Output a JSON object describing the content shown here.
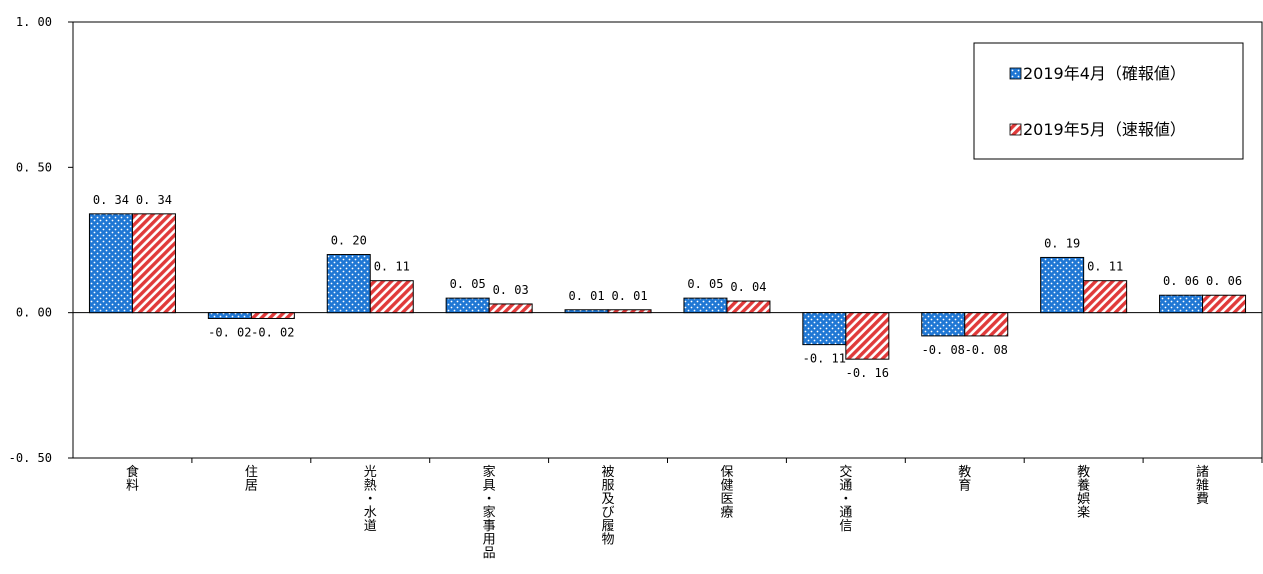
{
  "chart_data": {
    "type": "bar",
    "title": "",
    "xlabel": "",
    "ylabel": "",
    "ylim": [
      -0.5,
      1.0
    ],
    "yticks": [
      "1. 00",
      "0. 50",
      "0. 00",
      "-0. 50"
    ],
    "ytick_values": [
      1.0,
      0.5,
      0.0,
      -0.5
    ],
    "grid": false,
    "legend_position": "top-right",
    "categories": [
      "食料",
      "住居",
      "光熱・水道",
      "家具・家事用品",
      "被服及び履物",
      "保健医療",
      "交通・通信",
      "教育",
      "教養娯楽",
      "諸雑費"
    ],
    "series": [
      {
        "name": "2019年4月（確報値）",
        "color": "#1f77d4",
        "pattern": "dots",
        "values": [
          0.34,
          -0.02,
          0.2,
          0.05,
          0.01,
          0.05,
          -0.11,
          -0.08,
          0.19,
          0.06
        ],
        "labels": [
          "0. 34",
          "-0. 02",
          "0. 20",
          "0. 05",
          "0. 01",
          "0. 05",
          "-0. 11",
          "-0. 08",
          "0. 19",
          "0. 06"
        ]
      },
      {
        "name": "2019年5月（速報値）",
        "color": "#e03a3a",
        "pattern": "diagonal-stripes",
        "values": [
          0.34,
          -0.02,
          0.11,
          0.03,
          0.01,
          0.04,
          -0.16,
          -0.08,
          0.11,
          0.06
        ],
        "labels": [
          "0. 34",
          "-0. 02",
          "0. 11",
          "0. 03",
          "0. 01",
          "0. 04",
          "-0. 16",
          "-0. 08",
          "0. 11",
          "0. 06"
        ]
      }
    ]
  }
}
